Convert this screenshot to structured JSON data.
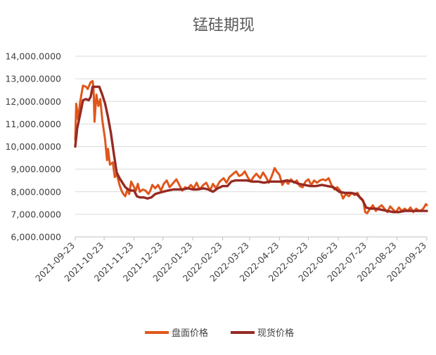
{
  "chart_data": {
    "type": "line",
    "title": "锰硅期现",
    "xlabel": "",
    "ylabel": "",
    "ylim": [
      6000,
      14000
    ],
    "y_ticks": [
      "6,000.0000",
      "7,000.0000",
      "8,000.0000",
      "9,000.0000",
      "10,000.0000",
      "11,000.0000",
      "12,000.0000",
      "13,000.0000",
      "14,000.0000"
    ],
    "x_ticks": [
      "2021-09-23",
      "2021-10-23",
      "2021-11-23",
      "2021-12-23",
      "2022-01-23",
      "2022-02-23",
      "2022-03-23",
      "2022-04-23",
      "2022-05-23",
      "2022-06-23",
      "2022-07-23",
      "2022-08-23",
      "2022-09-23"
    ],
    "grid": true,
    "legend_position": "bottom",
    "series": [
      {
        "name": "盘面价格",
        "color": "#E0561B",
        "points": [
          [
            "2021-09-23",
            10300
          ],
          [
            "2021-09-24",
            11900
          ],
          [
            "2021-09-26",
            11200
          ],
          [
            "2021-09-28",
            11950
          ],
          [
            "2021-10-01",
            12700
          ],
          [
            "2021-10-04",
            12650
          ],
          [
            "2021-10-06",
            12550
          ],
          [
            "2021-10-09",
            12850
          ],
          [
            "2021-10-11",
            12900
          ],
          [
            "2021-10-12",
            12600
          ],
          [
            "2021-10-13",
            11100
          ],
          [
            "2021-10-15",
            12300
          ],
          [
            "2021-10-17",
            11800
          ],
          [
            "2021-10-19",
            12100
          ],
          [
            "2021-10-21",
            11200
          ],
          [
            "2021-10-24",
            10300
          ],
          [
            "2021-10-26",
            9400
          ],
          [
            "2021-10-27",
            9900
          ],
          [
            "2021-10-29",
            9200
          ],
          [
            "2021-11-01",
            9300
          ],
          [
            "2021-11-03",
            8650
          ],
          [
            "2021-11-05",
            8800
          ],
          [
            "2021-11-08",
            8300
          ],
          [
            "2021-11-10",
            8050
          ],
          [
            "2021-11-12",
            7900
          ],
          [
            "2021-11-14",
            7800
          ],
          [
            "2021-11-16",
            8100
          ],
          [
            "2021-11-18",
            7900
          ],
          [
            "2021-11-20",
            8450
          ],
          [
            "2021-11-23",
            8200
          ],
          [
            "2021-11-25",
            8050
          ],
          [
            "2021-11-27",
            8350
          ],
          [
            "2021-11-29",
            8000
          ],
          [
            "2021-12-02",
            8100
          ],
          [
            "2021-12-05",
            8050
          ],
          [
            "2021-12-08",
            7900
          ],
          [
            "2021-12-10",
            8050
          ],
          [
            "2021-12-12",
            8300
          ],
          [
            "2021-12-15",
            8150
          ],
          [
            "2021-12-18",
            8300
          ],
          [
            "2021-12-21",
            8050
          ],
          [
            "2021-12-24",
            8350
          ],
          [
            "2021-12-27",
            8500
          ],
          [
            "2021-12-30",
            8200
          ],
          [
            "2022-01-03",
            8400
          ],
          [
            "2022-01-06",
            8550
          ],
          [
            "2022-01-09",
            8300
          ],
          [
            "2022-01-12",
            8050
          ],
          [
            "2022-01-15",
            8200
          ],
          [
            "2022-01-18",
            8150
          ],
          [
            "2022-01-21",
            8300
          ],
          [
            "2022-01-24",
            8150
          ],
          [
            "2022-01-27",
            8400
          ],
          [
            "2022-01-30",
            8100
          ],
          [
            "2022-02-03",
            8300
          ],
          [
            "2022-02-06",
            8400
          ],
          [
            "2022-02-10",
            8050
          ],
          [
            "2022-02-13",
            8350
          ],
          [
            "2022-02-16",
            8150
          ],
          [
            "2022-02-20",
            8450
          ],
          [
            "2022-02-24",
            8600
          ],
          [
            "2022-02-27",
            8400
          ],
          [
            "2022-03-02",
            8650
          ],
          [
            "2022-03-06",
            8800
          ],
          [
            "2022-03-09",
            8900
          ],
          [
            "2022-03-12",
            8700
          ],
          [
            "2022-03-15",
            8750
          ],
          [
            "2022-03-18",
            8900
          ],
          [
            "2022-03-21",
            8650
          ],
          [
            "2022-03-24",
            8450
          ],
          [
            "2022-03-27",
            8650
          ],
          [
            "2022-03-30",
            8800
          ],
          [
            "2022-04-03",
            8600
          ],
          [
            "2022-04-06",
            8850
          ],
          [
            "2022-04-09",
            8650
          ],
          [
            "2022-04-12",
            8400
          ],
          [
            "2022-04-15",
            8700
          ],
          [
            "2022-04-18",
            9050
          ],
          [
            "2022-04-20",
            8900
          ],
          [
            "2022-04-23",
            8750
          ],
          [
            "2022-04-26",
            8300
          ],
          [
            "2022-04-29",
            8500
          ],
          [
            "2022-05-02",
            8350
          ],
          [
            "2022-05-05",
            8550
          ],
          [
            "2022-05-08",
            8400
          ],
          [
            "2022-05-11",
            8500
          ],
          [
            "2022-05-14",
            8250
          ],
          [
            "2022-05-17",
            8200
          ],
          [
            "2022-05-20",
            8450
          ],
          [
            "2022-05-23",
            8550
          ],
          [
            "2022-05-26",
            8300
          ],
          [
            "2022-05-29",
            8500
          ],
          [
            "2022-06-01",
            8400
          ],
          [
            "2022-06-04",
            8500
          ],
          [
            "2022-06-07",
            8550
          ],
          [
            "2022-06-10",
            8500
          ],
          [
            "2022-06-13",
            8600
          ],
          [
            "2022-06-16",
            8300
          ],
          [
            "2022-06-19",
            8100
          ],
          [
            "2022-06-22",
            8200
          ],
          [
            "2022-06-25",
            8050
          ],
          [
            "2022-06-28",
            7700
          ],
          [
            "2022-07-01",
            7900
          ],
          [
            "2022-07-04",
            7800
          ],
          [
            "2022-07-07",
            7950
          ],
          [
            "2022-07-10",
            7850
          ],
          [
            "2022-07-13",
            7950
          ],
          [
            "2022-07-16",
            7700
          ],
          [
            "2022-07-19",
            7600
          ],
          [
            "2022-07-21",
            7100
          ],
          [
            "2022-07-23",
            7050
          ],
          [
            "2022-07-26",
            7250
          ],
          [
            "2022-07-29",
            7400
          ],
          [
            "2022-08-01",
            7150
          ],
          [
            "2022-08-04",
            7300
          ],
          [
            "2022-08-07",
            7400
          ],
          [
            "2022-08-10",
            7250
          ],
          [
            "2022-08-13",
            7100
          ],
          [
            "2022-08-16",
            7350
          ],
          [
            "2022-08-19",
            7200
          ],
          [
            "2022-08-22",
            7100
          ],
          [
            "2022-08-25",
            7300
          ],
          [
            "2022-08-28",
            7150
          ],
          [
            "2022-08-31",
            7250
          ],
          [
            "2022-09-03",
            7150
          ],
          [
            "2022-09-06",
            7300
          ],
          [
            "2022-09-09",
            7100
          ],
          [
            "2022-09-12",
            7250
          ],
          [
            "2022-09-15",
            7150
          ],
          [
            "2022-09-18",
            7200
          ],
          [
            "2022-09-20",
            7300
          ],
          [
            "2022-09-22",
            7450
          ],
          [
            "2022-09-23",
            7400
          ]
        ]
      },
      {
        "name": "现货价格",
        "color": "#962A23",
        "points": [
          [
            "2021-09-23",
            10000
          ],
          [
            "2021-09-25",
            10800
          ],
          [
            "2021-09-28",
            11400
          ],
          [
            "2021-10-01",
            12050
          ],
          [
            "2021-10-04",
            12100
          ],
          [
            "2021-10-07",
            12050
          ],
          [
            "2021-10-09",
            12200
          ],
          [
            "2021-10-11",
            12650
          ],
          [
            "2021-10-14",
            12650
          ],
          [
            "2021-10-18",
            12650
          ],
          [
            "2021-10-21",
            12300
          ],
          [
            "2021-10-24",
            11900
          ],
          [
            "2021-10-27",
            11300
          ],
          [
            "2021-10-30",
            10600
          ],
          [
            "2021-11-02",
            9700
          ],
          [
            "2021-11-05",
            8850
          ],
          [
            "2021-11-08",
            8600
          ],
          [
            "2021-11-11",
            8400
          ],
          [
            "2021-11-14",
            8200
          ],
          [
            "2021-11-17",
            8100
          ],
          [
            "2021-11-20",
            8050
          ],
          [
            "2021-11-23",
            8050
          ],
          [
            "2021-11-26",
            7800
          ],
          [
            "2021-11-29",
            7750
          ],
          [
            "2021-12-03",
            7750
          ],
          [
            "2021-12-07",
            7700
          ],
          [
            "2021-12-11",
            7750
          ],
          [
            "2021-12-15",
            7900
          ],
          [
            "2021-12-19",
            7950
          ],
          [
            "2021-12-23",
            8000
          ],
          [
            "2021-12-28",
            8050
          ],
          [
            "2022-01-03",
            8100
          ],
          [
            "2022-01-08",
            8100
          ],
          [
            "2022-01-13",
            8100
          ],
          [
            "2022-01-18",
            8150
          ],
          [
            "2022-01-23",
            8100
          ],
          [
            "2022-01-28",
            8100
          ],
          [
            "2022-02-03",
            8150
          ],
          [
            "2022-02-08",
            8100
          ],
          [
            "2022-02-13",
            8000
          ],
          [
            "2022-02-18",
            8150
          ],
          [
            "2022-02-23",
            8250
          ],
          [
            "2022-02-28",
            8250
          ],
          [
            "2022-03-04",
            8450
          ],
          [
            "2022-03-08",
            8500
          ],
          [
            "2022-03-14",
            8500
          ],
          [
            "2022-03-20",
            8500
          ],
          [
            "2022-03-26",
            8450
          ],
          [
            "2022-04-01",
            8450
          ],
          [
            "2022-04-07",
            8400
          ],
          [
            "2022-04-13",
            8450
          ],
          [
            "2022-04-19",
            8450
          ],
          [
            "2022-04-25",
            8450
          ],
          [
            "2022-05-01",
            8500
          ],
          [
            "2022-05-07",
            8450
          ],
          [
            "2022-05-13",
            8350
          ],
          [
            "2022-05-19",
            8300
          ],
          [
            "2022-05-25",
            8250
          ],
          [
            "2022-05-31",
            8250
          ],
          [
            "2022-06-06",
            8300
          ],
          [
            "2022-06-12",
            8250
          ],
          [
            "2022-06-18",
            8200
          ],
          [
            "2022-06-24",
            8000
          ],
          [
            "2022-06-30",
            7950
          ],
          [
            "2022-07-06",
            7950
          ],
          [
            "2022-07-12",
            7900
          ],
          [
            "2022-07-18",
            7650
          ],
          [
            "2022-07-22",
            7300
          ],
          [
            "2022-07-26",
            7250
          ],
          [
            "2022-08-01",
            7250
          ],
          [
            "2022-08-07",
            7200
          ],
          [
            "2022-08-13",
            7150
          ],
          [
            "2022-08-19",
            7100
          ],
          [
            "2022-08-25",
            7100
          ],
          [
            "2022-08-31",
            7150
          ],
          [
            "2022-09-06",
            7150
          ],
          [
            "2022-09-12",
            7150
          ],
          [
            "2022-09-18",
            7150
          ],
          [
            "2022-09-23",
            7150
          ]
        ]
      }
    ]
  }
}
